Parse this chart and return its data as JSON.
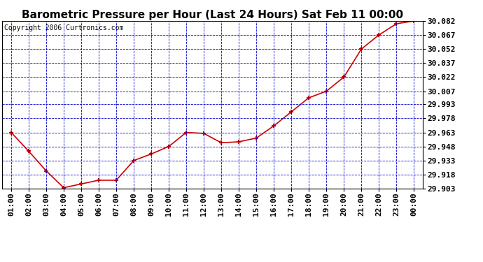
{
  "title": "Barometric Pressure per Hour (Last 24 Hours) Sat Feb 11 00:00",
  "copyright": "Copyright 2006 Curtronics.com",
  "x_labels": [
    "01:00",
    "02:00",
    "03:00",
    "04:00",
    "05:00",
    "06:00",
    "07:00",
    "08:00",
    "09:00",
    "10:00",
    "11:00",
    "12:00",
    "13:00",
    "14:00",
    "15:00",
    "16:00",
    "17:00",
    "18:00",
    "19:00",
    "20:00",
    "21:00",
    "22:00",
    "23:00",
    "00:00"
  ],
  "y_values": [
    29.963,
    29.943,
    29.922,
    29.904,
    29.908,
    29.912,
    29.912,
    29.933,
    29.94,
    29.948,
    29.963,
    29.962,
    29.952,
    29.953,
    29.957,
    29.97,
    29.985,
    30.0,
    30.007,
    30.022,
    30.052,
    30.067,
    30.079,
    30.082
  ],
  "line_color": "#cc0000",
  "marker_color": "#cc0000",
  "bg_color": "#ffffff",
  "plot_bg_color": "#ffffff",
  "grid_color": "#0000cc",
  "title_fontsize": 11,
  "copyright_fontsize": 7,
  "tick_fontsize": 8,
  "ylim_min": 29.903,
  "ylim_max": 30.082,
  "ytick_values": [
    29.903,
    29.918,
    29.933,
    29.948,
    29.963,
    29.978,
    29.993,
    30.007,
    30.022,
    30.037,
    30.052,
    30.067,
    30.082
  ]
}
